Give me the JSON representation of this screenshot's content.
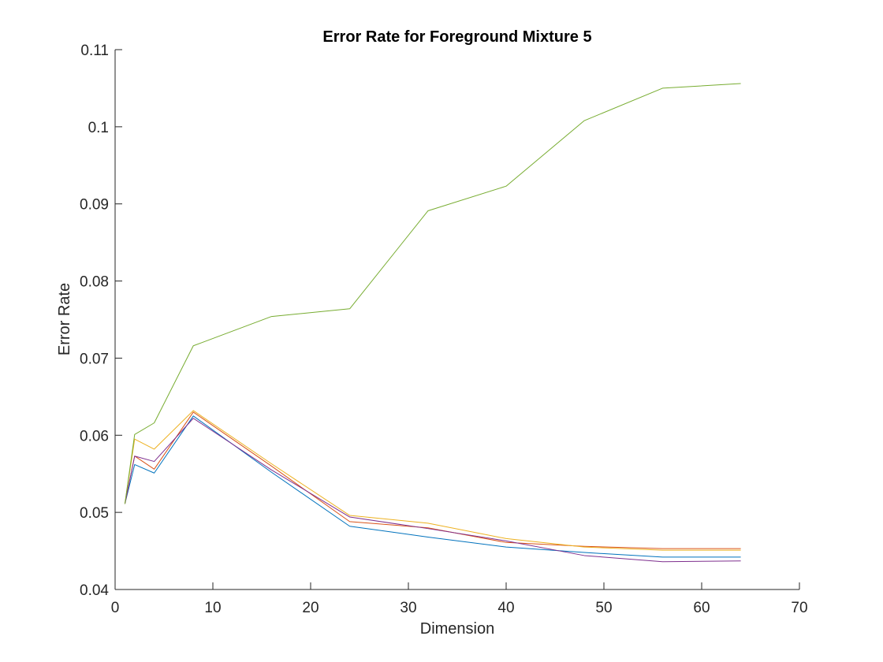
{
  "chart_data": {
    "type": "line",
    "title": "Error Rate for Foreground Mixture 5",
    "xlabel": "Dimension",
    "ylabel": "Error Rate",
    "xlim": [
      0,
      70
    ],
    "ylim": [
      0.04,
      0.11
    ],
    "xticks": [
      0,
      10,
      20,
      30,
      40,
      50,
      60,
      70
    ],
    "yticks": [
      0.04,
      0.05,
      0.06,
      0.07,
      0.08,
      0.09,
      0.1,
      0.11
    ],
    "xtick_labels": [
      "0",
      "10",
      "20",
      "30",
      "40",
      "50",
      "60",
      "70"
    ],
    "ytick_labels": [
      "0.04",
      "0.05",
      "0.06",
      "0.07",
      "0.08",
      "0.09",
      "0.1",
      "0.11"
    ],
    "grid": false,
    "legend": "none",
    "x": [
      1,
      2,
      4,
      8,
      16,
      24,
      32,
      40,
      48,
      56,
      64
    ],
    "series": [
      {
        "color": "#0072BD",
        "values": [
          0.0511,
          0.0562,
          0.0551,
          0.0625,
          0.0552,
          0.0482,
          0.0468,
          0.0455,
          0.0448,
          0.0442,
          0.0442
        ]
      },
      {
        "color": "#D95319",
        "values": [
          0.0511,
          0.0573,
          0.0556,
          0.063,
          0.056,
          0.0488,
          0.048,
          0.0461,
          0.0456,
          0.0453,
          0.0453
        ]
      },
      {
        "color": "#EDB120",
        "values": [
          0.0511,
          0.0595,
          0.0582,
          0.0632,
          0.0563,
          0.0496,
          0.0486,
          0.0466,
          0.0455,
          0.0451,
          0.0451
        ]
      },
      {
        "color": "#7E2F8E",
        "values": [
          0.0511,
          0.0573,
          0.0566,
          0.0622,
          0.0555,
          0.0494,
          0.0479,
          0.0463,
          0.0444,
          0.0436,
          0.0437
        ]
      },
      {
        "color": "#77AC30",
        "values": [
          0.0511,
          0.0601,
          0.0616,
          0.0716,
          0.0754,
          0.0764,
          0.0891,
          0.0923,
          0.1008,
          0.105,
          0.1056
        ]
      }
    ]
  }
}
